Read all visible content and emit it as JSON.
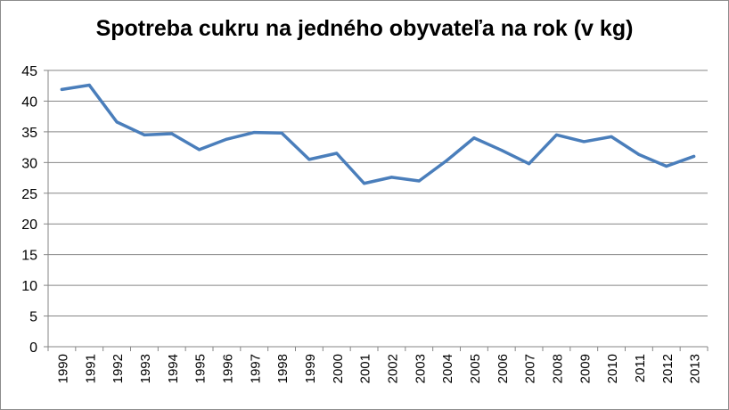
{
  "chart_data": {
    "type": "line",
    "title": "Spotreba cukru na jedného obyvateľa na rok (v kg)",
    "xlabel": "",
    "ylabel": "",
    "ylim": [
      0,
      45
    ],
    "yticks": [
      0,
      5,
      10,
      15,
      20,
      25,
      30,
      35,
      40,
      45
    ],
    "grid": true,
    "legend": "none",
    "categories": [
      "1990",
      "1991",
      "1992",
      "1993",
      "1994",
      "1995",
      "1996",
      "1997",
      "1998",
      "1999",
      "2000",
      "2001",
      "2002",
      "2003",
      "2004",
      "2005",
      "2006",
      "2007",
      "2008",
      "2009",
      "2010",
      "2011",
      "2012",
      "2013"
    ],
    "series": [
      {
        "color": "#4a7ebb",
        "values": [
          41.9,
          42.6,
          36.6,
          34.5,
          34.7,
          32.1,
          33.8,
          34.9,
          34.8,
          30.5,
          31.5,
          26.6,
          27.6,
          27.0,
          30.3,
          34.0,
          32.0,
          29.8,
          34.5,
          33.4,
          34.2,
          31.3,
          29.4,
          31.0
        ]
      }
    ]
  }
}
